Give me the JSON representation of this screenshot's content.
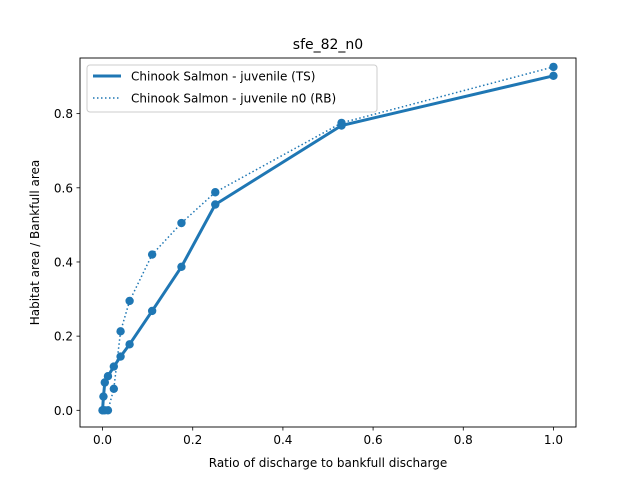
{
  "chart_data": {
    "type": "line",
    "title": "sfe_82_n0",
    "xlabel": "Ratio of discharge to bankfull discharge",
    "ylabel": "Habitat area / Bankfull area",
    "xlim": [
      -0.05,
      1.05
    ],
    "ylim": [
      -0.045,
      0.95
    ],
    "xticks": [
      0.0,
      0.2,
      0.4,
      0.6,
      0.8,
      1.0
    ],
    "xtick_labels": [
      "0.0",
      "0.2",
      "0.4",
      "0.6",
      "0.8",
      "1.0"
    ],
    "yticks": [
      0.0,
      0.2,
      0.4,
      0.6,
      0.8
    ],
    "ytick_labels": [
      "0.0",
      "0.2",
      "0.4",
      "0.6",
      "0.8"
    ],
    "grid": false,
    "legend_position": "top-left",
    "series": [
      {
        "name": "Chinook Salmon - juvenile (TS)",
        "color": "#1f77b4",
        "linestyle": "solid",
        "marker": "circle",
        "x": [
          0.0,
          0.002,
          0.005,
          0.012,
          0.025,
          0.04,
          0.06,
          0.11,
          0.175,
          0.25,
          0.53,
          1.0
        ],
        "y": [
          0.0,
          0.037,
          0.075,
          0.092,
          0.118,
          0.145,
          0.178,
          0.268,
          0.387,
          0.555,
          0.768,
          0.902
        ]
      },
      {
        "name": "Chinook Salmon - juvenile n0 (RB)",
        "color": "#1f77b4",
        "linestyle": "dotted",
        "marker": "circle",
        "x": [
          0.0,
          0.005,
          0.012,
          0.025,
          0.04,
          0.06,
          0.11,
          0.175,
          0.25,
          0.53,
          1.0
        ],
        "y": [
          0.0,
          0.0,
          0.0,
          0.058,
          0.213,
          0.295,
          0.42,
          0.505,
          0.588,
          0.775,
          0.926
        ]
      }
    ]
  }
}
